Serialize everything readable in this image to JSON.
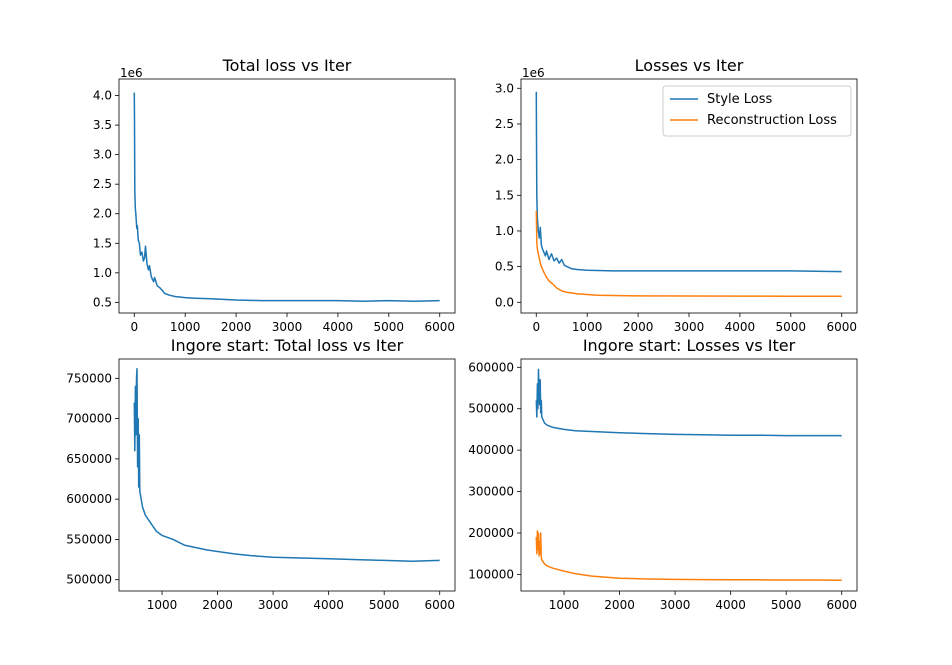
{
  "chart_data": [
    {
      "type": "line",
      "title": "Total loss vs Iter",
      "xlabel": "",
      "ylabel": "",
      "offset_label": "1e6",
      "xlim": [
        -300,
        6300
      ],
      "ylim": [
        0.32,
        4.28
      ],
      "xticks": [
        0,
        1000,
        2000,
        3000,
        4000,
        5000,
        6000
      ],
      "yticks": [
        0.5,
        1.0,
        1.5,
        2.0,
        2.5,
        3.0,
        3.5,
        4.0
      ],
      "ytick_labels": [
        "0.5",
        "1.0",
        "1.5",
        "2.0",
        "2.5",
        "3.0",
        "3.5",
        "4.0"
      ],
      "legend": null,
      "series": [
        {
          "color": "#1f77b4",
          "x": [
            0,
            5,
            10,
            20,
            30,
            50,
            60,
            80,
            100,
            120,
            150,
            180,
            200,
            220,
            250,
            280,
            300,
            330,
            350,
            380,
            400,
            450,
            500,
            550,
            600,
            700,
            800,
            1000,
            1200,
            1500,
            2000,
            2500,
            3000,
            3500,
            4000,
            4500,
            5000,
            5500,
            6000
          ],
          "y": [
            4.05,
            3.6,
            2.4,
            2.1,
            2.0,
            1.75,
            1.8,
            1.55,
            1.5,
            1.3,
            1.35,
            1.2,
            1.25,
            1.45,
            1.15,
            1.05,
            1.12,
            0.95,
            0.9,
            0.85,
            0.92,
            0.78,
            0.75,
            0.7,
            0.65,
            0.62,
            0.6,
            0.58,
            0.57,
            0.56,
            0.54,
            0.53,
            0.53,
            0.53,
            0.53,
            0.52,
            0.53,
            0.52,
            0.53
          ]
        }
      ]
    },
    {
      "type": "line",
      "title": "Losses vs Iter",
      "xlabel": "",
      "ylabel": "",
      "offset_label": "1e6",
      "xlim": [
        -300,
        6300
      ],
      "ylim": [
        -0.15,
        3.13
      ],
      "xticks": [
        0,
        1000,
        2000,
        3000,
        4000,
        5000,
        6000
      ],
      "yticks": [
        0.0,
        0.5,
        1.0,
        1.5,
        2.0,
        2.5,
        3.0
      ],
      "ytick_labels": [
        "0.0",
        "0.5",
        "1.0",
        "1.5",
        "2.0",
        "2.5",
        "3.0"
      ],
      "legend": "top-right",
      "series": [
        {
          "name": "Style Loss",
          "color": "#1f77b4",
          "x": [
            0,
            5,
            10,
            20,
            40,
            60,
            80,
            100,
            120,
            150,
            180,
            200,
            250,
            300,
            350,
            400,
            450,
            500,
            550,
            600,
            700,
            800,
            1000,
            1500,
            2000,
            3000,
            4000,
            5000,
            6000
          ],
          "y": [
            2.95,
            2.3,
            1.5,
            1.2,
            1.0,
            0.9,
            1.05,
            0.8,
            0.75,
            0.7,
            0.65,
            0.72,
            0.6,
            0.68,
            0.58,
            0.62,
            0.55,
            0.6,
            0.52,
            0.5,
            0.47,
            0.46,
            0.45,
            0.44,
            0.44,
            0.44,
            0.44,
            0.44,
            0.43
          ]
        },
        {
          "name": "Reconstruction Loss",
          "color": "#ff7f0e",
          "x": [
            0,
            5,
            10,
            20,
            40,
            60,
            80,
            100,
            150,
            200,
            250,
            300,
            350,
            400,
            450,
            500,
            550,
            600,
            700,
            800,
            1000,
            1200,
            1500,
            2000,
            3000,
            4000,
            5000,
            6000
          ],
          "y": [
            1.28,
            1.1,
            0.85,
            0.75,
            0.68,
            0.62,
            0.55,
            0.5,
            0.42,
            0.35,
            0.3,
            0.27,
            0.24,
            0.2,
            0.18,
            0.16,
            0.15,
            0.14,
            0.13,
            0.12,
            0.11,
            0.1,
            0.095,
            0.09,
            0.088,
            0.087,
            0.086,
            0.086
          ]
        }
      ]
    },
    {
      "type": "line",
      "title": "Ingore start: Total loss vs Iter",
      "xlabel": "",
      "ylabel": "",
      "offset_label": "",
      "xlim": [
        225,
        6275
      ],
      "ylim": [
        486000,
        774000
      ],
      "xticks": [
        1000,
        2000,
        3000,
        4000,
        5000,
        6000
      ],
      "yticks": [
        500000,
        550000,
        600000,
        650000,
        700000,
        750000
      ],
      "ytick_labels": [
        "500000",
        "550000",
        "600000",
        "650000",
        "700000",
        "750000"
      ],
      "legend": null,
      "series": [
        {
          "color": "#1f77b4",
          "x": [
            500,
            510,
            520,
            530,
            540,
            550,
            560,
            570,
            580,
            590,
            600,
            650,
            700,
            800,
            900,
            1000,
            1200,
            1400,
            1600,
            1800,
            2000,
            2300,
            2600,
            3000,
            3500,
            4000,
            4500,
            5000,
            5500,
            6000
          ],
          "y": [
            720000,
            660000,
            740000,
            680000,
            750000,
            762000,
            640000,
            700000,
            615000,
            680000,
            610000,
            590000,
            580000,
            570000,
            560000,
            555000,
            550000,
            543000,
            540000,
            537000,
            535000,
            532000,
            530000,
            528000,
            527000,
            526000,
            525000,
            524000,
            523000,
            524000
          ]
        }
      ]
    },
    {
      "type": "line",
      "title": "Ingore start: Losses vs Iter",
      "xlabel": "",
      "ylabel": "",
      "offset_label": "",
      "xlim": [
        225,
        6275
      ],
      "ylim": [
        60000,
        620000
      ],
      "xticks": [
        1000,
        2000,
        3000,
        4000,
        5000,
        6000
      ],
      "yticks": [
        100000,
        200000,
        300000,
        400000,
        500000,
        600000
      ],
      "ytick_labels": [
        "100000",
        "200000",
        "300000",
        "400000",
        "500000",
        "600000"
      ],
      "legend": null,
      "series": [
        {
          "color": "#1f77b4",
          "x": [
            500,
            510,
            520,
            530,
            540,
            550,
            560,
            570,
            580,
            590,
            600,
            650,
            700,
            800,
            1000,
            1200,
            1500,
            2000,
            2500,
            3000,
            3500,
            4000,
            4500,
            5000,
            5500,
            6000
          ],
          "y": [
            520000,
            480000,
            560000,
            500000,
            595000,
            540000,
            510000,
            570000,
            490000,
            520000,
            480000,
            465000,
            460000,
            455000,
            450000,
            447000,
            445000,
            442000,
            440000,
            438000,
            437000,
            436000,
            436000,
            435000,
            435000,
            435000
          ]
        },
        {
          "color": "#ff7f0e",
          "x": [
            500,
            510,
            520,
            530,
            540,
            550,
            560,
            570,
            580,
            590,
            600,
            650,
            700,
            800,
            1000,
            1200,
            1500,
            2000,
            2500,
            3000,
            3500,
            4000,
            4500,
            5000,
            5500,
            6000
          ],
          "y": [
            190000,
            150000,
            205000,
            160000,
            200000,
            145000,
            180000,
            150000,
            200000,
            140000,
            135000,
            125000,
            120000,
            115000,
            108000,
            102000,
            96000,
            91000,
            89000,
            88000,
            87500,
            87000,
            87000,
            86500,
            86500,
            86000
          ]
        }
      ]
    }
  ]
}
